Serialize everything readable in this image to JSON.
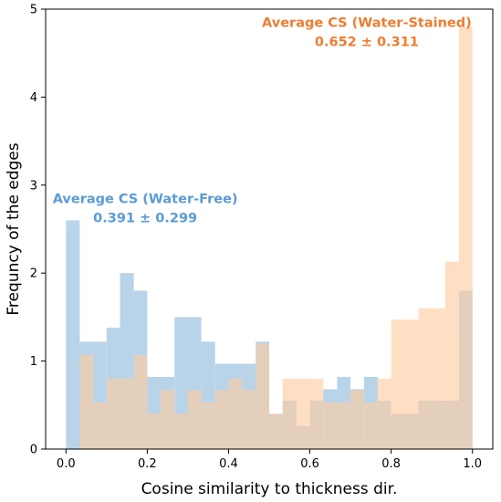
{
  "chart_data": {
    "type": "bar",
    "subtype": "histogram",
    "xlabel": "Cosine similarity to thickness dir.",
    "ylabel": "Frequncy of the edges",
    "xlim": [
      -0.05,
      1.05
    ],
    "ylim": [
      0,
      5
    ],
    "xticks": [
      "0.0",
      "0.2",
      "0.4",
      "0.6",
      "0.8",
      "1.0"
    ],
    "yticks": [
      "0",
      "1",
      "2",
      "3",
      "4",
      "5"
    ],
    "grid": false,
    "series": [
      {
        "key": "water-free",
        "color": "#a6c8e4",
        "label_color": "#5b9bd5",
        "bins": [
          [
            0.0,
            0.034,
            2.6
          ],
          [
            0.034,
            0.067,
            1.22
          ],
          [
            0.067,
            0.1,
            1.22
          ],
          [
            0.1,
            0.133,
            1.38
          ],
          [
            0.133,
            0.167,
            2.0
          ],
          [
            0.167,
            0.2,
            1.8
          ],
          [
            0.2,
            0.233,
            0.82
          ],
          [
            0.233,
            0.267,
            0.82
          ],
          [
            0.267,
            0.333,
            1.5
          ],
          [
            0.333,
            0.367,
            1.22
          ],
          [
            0.367,
            0.433,
            0.97
          ],
          [
            0.433,
            0.467,
            0.97
          ],
          [
            0.467,
            0.5,
            1.22
          ],
          [
            0.5,
            0.533,
            0.4
          ],
          [
            0.533,
            0.567,
            0.55
          ],
          [
            0.567,
            0.6,
            0.26
          ],
          [
            0.6,
            0.633,
            0.55
          ],
          [
            0.633,
            0.667,
            0.68
          ],
          [
            0.667,
            0.7,
            0.82
          ],
          [
            0.7,
            0.733,
            0.68
          ],
          [
            0.733,
            0.767,
            0.82
          ],
          [
            0.767,
            0.8,
            0.55
          ],
          [
            0.8,
            0.867,
            0.4
          ],
          [
            0.867,
            0.933,
            0.55
          ],
          [
            0.933,
            0.967,
            0.55
          ],
          [
            0.967,
            1.0,
            1.8
          ]
        ]
      },
      {
        "key": "water-stained",
        "color": "#ffcca0",
        "label_color": "#ed7d31",
        "bins": [
          [
            0.034,
            0.067,
            1.07
          ],
          [
            0.067,
            0.1,
            0.53
          ],
          [
            0.1,
            0.133,
            0.8
          ],
          [
            0.133,
            0.167,
            0.8
          ],
          [
            0.167,
            0.2,
            1.07
          ],
          [
            0.2,
            0.233,
            0.4
          ],
          [
            0.233,
            0.267,
            0.67
          ],
          [
            0.267,
            0.3,
            0.4
          ],
          [
            0.3,
            0.333,
            0.67
          ],
          [
            0.333,
            0.367,
            0.53
          ],
          [
            0.367,
            0.4,
            0.67
          ],
          [
            0.4,
            0.433,
            0.8
          ],
          [
            0.433,
            0.467,
            0.67
          ],
          [
            0.467,
            0.5,
            1.2
          ],
          [
            0.5,
            0.533,
            0.4
          ],
          [
            0.533,
            0.567,
            0.8
          ],
          [
            0.567,
            0.6,
            0.8
          ],
          [
            0.6,
            0.633,
            0.8
          ],
          [
            0.633,
            0.667,
            0.53
          ],
          [
            0.667,
            0.7,
            0.53
          ],
          [
            0.7,
            0.733,
            0.67
          ],
          [
            0.733,
            0.767,
            0.53
          ],
          [
            0.767,
            0.8,
            0.8
          ],
          [
            0.8,
            0.867,
            1.47
          ],
          [
            0.867,
            0.933,
            1.6
          ],
          [
            0.933,
            0.967,
            2.13
          ],
          [
            0.967,
            1.0,
            4.8
          ]
        ]
      }
    ],
    "annotations": [
      {
        "series": "water-free",
        "title": "Average CS (Water-Free)",
        "value": "0.391 ± 0.299",
        "anchor_x": 0.195,
        "anchor_y": 2.85
      },
      {
        "series": "water-stained",
        "title": "Average CS (Water-Stained)",
        "value": "0.652 ± 0.311",
        "anchor_x": 0.74,
        "anchor_y": 4.85
      }
    ]
  }
}
